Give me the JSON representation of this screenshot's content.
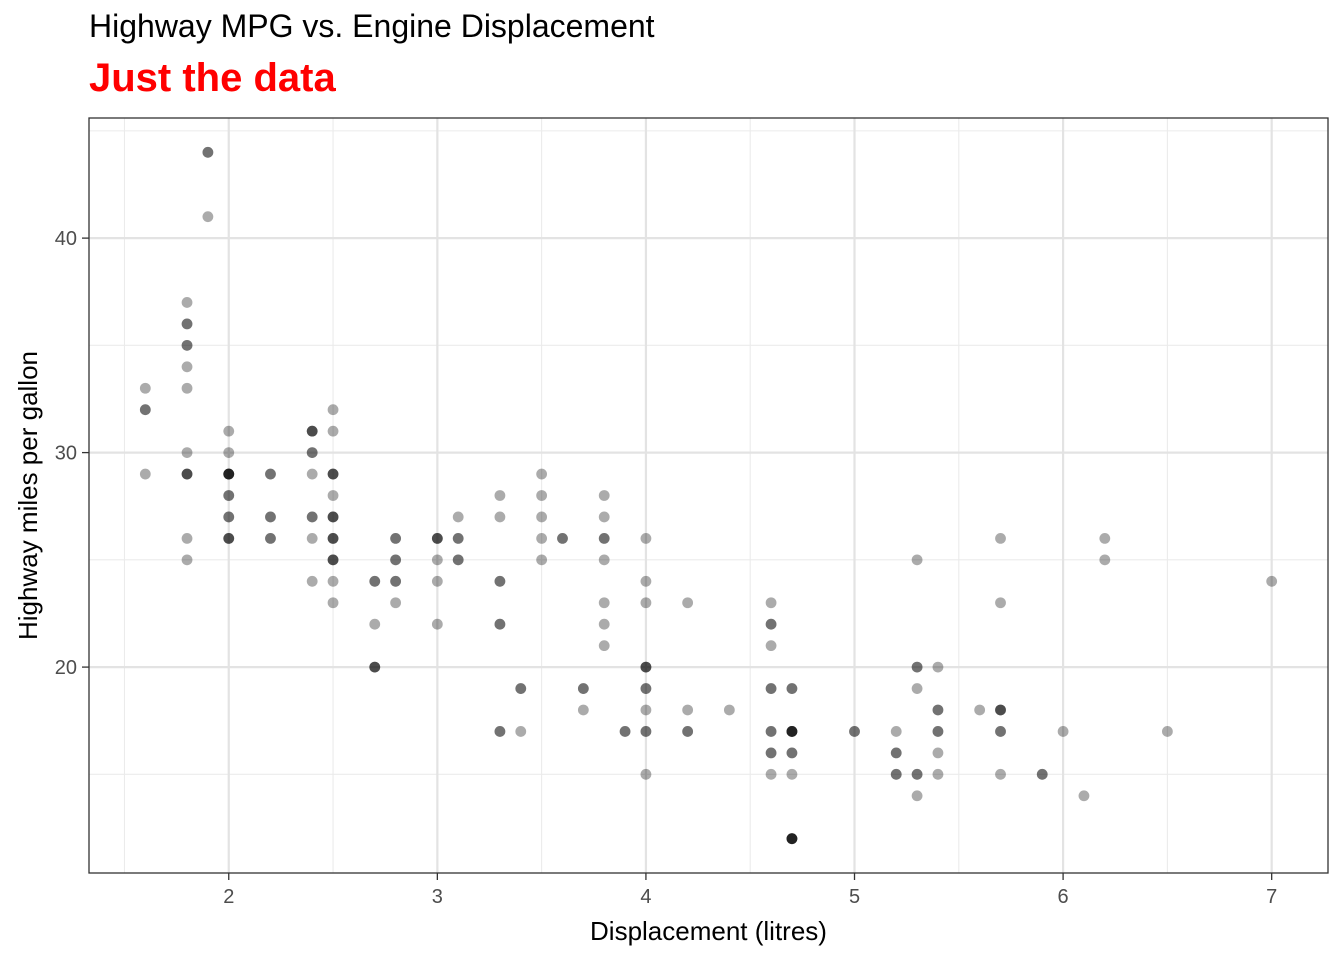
{
  "chart_data": {
    "type": "scatter",
    "title": "Highway MPG vs. Engine Displacement",
    "subtitle": "Just the data",
    "subtitle_color": "#ff0000",
    "xlabel": "Displacement (litres)",
    "ylabel": "Highway miles per gallon",
    "xlim": [
      1.33,
      7.27
    ],
    "ylim": [
      10.4,
      45.6
    ],
    "x_ticks": [
      2,
      3,
      4,
      5,
      6,
      7
    ],
    "y_ticks": [
      20,
      30,
      40
    ],
    "grid": true,
    "point_color": "#000000",
    "point_opacity": 0.33,
    "points": [
      {
        "x": 1.6,
        "y": 33
      },
      {
        "x": 1.6,
        "y": 32
      },
      {
        "x": 1.6,
        "y": 32
      },
      {
        "x": 1.6,
        "y": 29
      },
      {
        "x": 1.8,
        "y": 37
      },
      {
        "x": 1.8,
        "y": 36
      },
      {
        "x": 1.8,
        "y": 36
      },
      {
        "x": 1.8,
        "y": 35
      },
      {
        "x": 1.8,
        "y": 35
      },
      {
        "x": 1.8,
        "y": 34
      },
      {
        "x": 1.8,
        "y": 33
      },
      {
        "x": 1.8,
        "y": 30
      },
      {
        "x": 1.8,
        "y": 29
      },
      {
        "x": 1.8,
        "y": 29
      },
      {
        "x": 1.8,
        "y": 29
      },
      {
        "x": 1.8,
        "y": 26
      },
      {
        "x": 1.8,
        "y": 25
      },
      {
        "x": 1.9,
        "y": 44
      },
      {
        "x": 1.9,
        "y": 44
      },
      {
        "x": 1.9,
        "y": 41
      },
      {
        "x": 2.0,
        "y": 31
      },
      {
        "x": 2.0,
        "y": 30
      },
      {
        "x": 2.0,
        "y": 29
      },
      {
        "x": 2.0,
        "y": 29
      },
      {
        "x": 2.0,
        "y": 29
      },
      {
        "x": 2.0,
        "y": 29
      },
      {
        "x": 2.0,
        "y": 29
      },
      {
        "x": 2.0,
        "y": 28
      },
      {
        "x": 2.0,
        "y": 28
      },
      {
        "x": 2.0,
        "y": 27
      },
      {
        "x": 2.0,
        "y": 27
      },
      {
        "x": 2.0,
        "y": 26
      },
      {
        "x": 2.0,
        "y": 26
      },
      {
        "x": 2.0,
        "y": 26
      },
      {
        "x": 2.2,
        "y": 29
      },
      {
        "x": 2.2,
        "y": 29
      },
      {
        "x": 2.2,
        "y": 27
      },
      {
        "x": 2.2,
        "y": 27
      },
      {
        "x": 2.2,
        "y": 26
      },
      {
        "x": 2.2,
        "y": 26
      },
      {
        "x": 2.4,
        "y": 31
      },
      {
        "x": 2.4,
        "y": 31
      },
      {
        "x": 2.4,
        "y": 31
      },
      {
        "x": 2.4,
        "y": 30
      },
      {
        "x": 2.4,
        "y": 30
      },
      {
        "x": 2.4,
        "y": 29
      },
      {
        "x": 2.4,
        "y": 27
      },
      {
        "x": 2.4,
        "y": 27
      },
      {
        "x": 2.4,
        "y": 26
      },
      {
        "x": 2.4,
        "y": 24
      },
      {
        "x": 2.5,
        "y": 32
      },
      {
        "x": 2.5,
        "y": 31
      },
      {
        "x": 2.5,
        "y": 29
      },
      {
        "x": 2.5,
        "y": 29
      },
      {
        "x": 2.5,
        "y": 29
      },
      {
        "x": 2.5,
        "y": 28
      },
      {
        "x": 2.5,
        "y": 27
      },
      {
        "x": 2.5,
        "y": 27
      },
      {
        "x": 2.5,
        "y": 27
      },
      {
        "x": 2.5,
        "y": 26
      },
      {
        "x": 2.5,
        "y": 26
      },
      {
        "x": 2.5,
        "y": 26
      },
      {
        "x": 2.5,
        "y": 25
      },
      {
        "x": 2.5,
        "y": 25
      },
      {
        "x": 2.5,
        "y": 25
      },
      {
        "x": 2.5,
        "y": 24
      },
      {
        "x": 2.5,
        "y": 23
      },
      {
        "x": 2.7,
        "y": 24
      },
      {
        "x": 2.7,
        "y": 24
      },
      {
        "x": 2.7,
        "y": 22
      },
      {
        "x": 2.7,
        "y": 20
      },
      {
        "x": 2.7,
        "y": 20
      },
      {
        "x": 2.7,
        "y": 20
      },
      {
        "x": 2.8,
        "y": 26
      },
      {
        "x": 2.8,
        "y": 26
      },
      {
        "x": 2.8,
        "y": 25
      },
      {
        "x": 2.8,
        "y": 25
      },
      {
        "x": 2.8,
        "y": 24
      },
      {
        "x": 2.8,
        "y": 24
      },
      {
        "x": 2.8,
        "y": 23
      },
      {
        "x": 3.0,
        "y": 26
      },
      {
        "x": 3.0,
        "y": 26
      },
      {
        "x": 3.0,
        "y": 26
      },
      {
        "x": 3.0,
        "y": 25
      },
      {
        "x": 3.0,
        "y": 24
      },
      {
        "x": 3.0,
        "y": 22
      },
      {
        "x": 3.1,
        "y": 27
      },
      {
        "x": 3.1,
        "y": 26
      },
      {
        "x": 3.1,
        "y": 26
      },
      {
        "x": 3.1,
        "y": 25
      },
      {
        "x": 3.1,
        "y": 25
      },
      {
        "x": 3.3,
        "y": 28
      },
      {
        "x": 3.3,
        "y": 27
      },
      {
        "x": 3.3,
        "y": 24
      },
      {
        "x": 3.3,
        "y": 24
      },
      {
        "x": 3.3,
        "y": 22
      },
      {
        "x": 3.3,
        "y": 22
      },
      {
        "x": 3.3,
        "y": 17
      },
      {
        "x": 3.3,
        "y": 17
      },
      {
        "x": 3.4,
        "y": 19
      },
      {
        "x": 3.4,
        "y": 19
      },
      {
        "x": 3.4,
        "y": 17
      },
      {
        "x": 3.5,
        "y": 29
      },
      {
        "x": 3.5,
        "y": 28
      },
      {
        "x": 3.5,
        "y": 27
      },
      {
        "x": 3.5,
        "y": 26
      },
      {
        "x": 3.5,
        "y": 25
      },
      {
        "x": 3.6,
        "y": 26
      },
      {
        "x": 3.6,
        "y": 26
      },
      {
        "x": 3.7,
        "y": 19
      },
      {
        "x": 3.7,
        "y": 19
      },
      {
        "x": 3.7,
        "y": 18
      },
      {
        "x": 3.8,
        "y": 28
      },
      {
        "x": 3.8,
        "y": 27
      },
      {
        "x": 3.8,
        "y": 26
      },
      {
        "x": 3.8,
        "y": 26
      },
      {
        "x": 3.8,
        "y": 25
      },
      {
        "x": 3.8,
        "y": 23
      },
      {
        "x": 3.8,
        "y": 22
      },
      {
        "x": 3.8,
        "y": 21
      },
      {
        "x": 3.9,
        "y": 17
      },
      {
        "x": 3.9,
        "y": 17
      },
      {
        "x": 4.0,
        "y": 26
      },
      {
        "x": 4.0,
        "y": 24
      },
      {
        "x": 4.0,
        "y": 23
      },
      {
        "x": 4.0,
        "y": 20
      },
      {
        "x": 4.0,
        "y": 20
      },
      {
        "x": 4.0,
        "y": 20
      },
      {
        "x": 4.0,
        "y": 19
      },
      {
        "x": 4.0,
        "y": 19
      },
      {
        "x": 4.0,
        "y": 18
      },
      {
        "x": 4.0,
        "y": 17
      },
      {
        "x": 4.0,
        "y": 17
      },
      {
        "x": 4.0,
        "y": 15
      },
      {
        "x": 4.2,
        "y": 23
      },
      {
        "x": 4.2,
        "y": 18
      },
      {
        "x": 4.2,
        "y": 17
      },
      {
        "x": 4.2,
        "y": 17
      },
      {
        "x": 4.4,
        "y": 18
      },
      {
        "x": 4.6,
        "y": 23
      },
      {
        "x": 4.6,
        "y": 22
      },
      {
        "x": 4.6,
        "y": 22
      },
      {
        "x": 4.6,
        "y": 21
      },
      {
        "x": 4.6,
        "y": 19
      },
      {
        "x": 4.6,
        "y": 19
      },
      {
        "x": 4.6,
        "y": 17
      },
      {
        "x": 4.6,
        "y": 17
      },
      {
        "x": 4.6,
        "y": 16
      },
      {
        "x": 4.6,
        "y": 16
      },
      {
        "x": 4.6,
        "y": 15
      },
      {
        "x": 4.7,
        "y": 19
      },
      {
        "x": 4.7,
        "y": 19
      },
      {
        "x": 4.7,
        "y": 17
      },
      {
        "x": 4.7,
        "y": 17
      },
      {
        "x": 4.7,
        "y": 17
      },
      {
        "x": 4.7,
        "y": 17
      },
      {
        "x": 4.7,
        "y": 17
      },
      {
        "x": 4.7,
        "y": 16
      },
      {
        "x": 4.7,
        "y": 16
      },
      {
        "x": 4.7,
        "y": 15
      },
      {
        "x": 4.7,
        "y": 12
      },
      {
        "x": 4.7,
        "y": 12
      },
      {
        "x": 4.7,
        "y": 12
      },
      {
        "x": 4.7,
        "y": 12
      },
      {
        "x": 4.7,
        "y": 12
      },
      {
        "x": 5.0,
        "y": 17
      },
      {
        "x": 5.0,
        "y": 17
      },
      {
        "x": 5.2,
        "y": 17
      },
      {
        "x": 5.2,
        "y": 16
      },
      {
        "x": 5.2,
        "y": 16
      },
      {
        "x": 5.2,
        "y": 15
      },
      {
        "x": 5.2,
        "y": 15
      },
      {
        "x": 5.3,
        "y": 25
      },
      {
        "x": 5.3,
        "y": 20
      },
      {
        "x": 5.3,
        "y": 20
      },
      {
        "x": 5.3,
        "y": 19
      },
      {
        "x": 5.3,
        "y": 15
      },
      {
        "x": 5.3,
        "y": 15
      },
      {
        "x": 5.3,
        "y": 14
      },
      {
        "x": 5.4,
        "y": 20
      },
      {
        "x": 5.4,
        "y": 18
      },
      {
        "x": 5.4,
        "y": 18
      },
      {
        "x": 5.4,
        "y": 17
      },
      {
        "x": 5.4,
        "y": 17
      },
      {
        "x": 5.4,
        "y": 16
      },
      {
        "x": 5.4,
        "y": 15
      },
      {
        "x": 5.6,
        "y": 18
      },
      {
        "x": 5.7,
        "y": 26
      },
      {
        "x": 5.7,
        "y": 23
      },
      {
        "x": 5.7,
        "y": 18
      },
      {
        "x": 5.7,
        "y": 18
      },
      {
        "x": 5.7,
        "y": 18
      },
      {
        "x": 5.7,
        "y": 17
      },
      {
        "x": 5.7,
        "y": 17
      },
      {
        "x": 5.7,
        "y": 15
      },
      {
        "x": 5.9,
        "y": 15
      },
      {
        "x": 5.9,
        "y": 15
      },
      {
        "x": 6.0,
        "y": 17
      },
      {
        "x": 6.1,
        "y": 14
      },
      {
        "x": 6.2,
        "y": 26
      },
      {
        "x": 6.2,
        "y": 25
      },
      {
        "x": 6.5,
        "y": 17
      },
      {
        "x": 7.0,
        "y": 24
      }
    ]
  }
}
